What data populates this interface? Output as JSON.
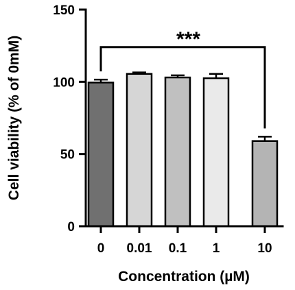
{
  "chart_data": {
    "type": "bar",
    "title": "",
    "xlabel": "Concentration (µM)",
    "ylabel": "Cell viability (% of 0mM)",
    "categories": [
      "0",
      "0.01",
      "0.1",
      "1",
      "10"
    ],
    "values": [
      99.5,
      105.5,
      103,
      102.5,
      59
    ],
    "errors": [
      2,
      1,
      1.5,
      3,
      3
    ],
    "bar_colors": [
      "#707070",
      "#d6d6d6",
      "#c0c0c0",
      "#eaeaea",
      "#b4b4b4"
    ],
    "ylim": [
      0,
      150
    ],
    "yticks": [
      0,
      50,
      100,
      150
    ],
    "ytick_labels": [
      "0",
      "50",
      "100",
      "150"
    ],
    "grid": false,
    "annotations": [
      {
        "text": "***",
        "from_category": "0",
        "to_category": "10",
        "bracket_y": 124
      }
    ]
  }
}
